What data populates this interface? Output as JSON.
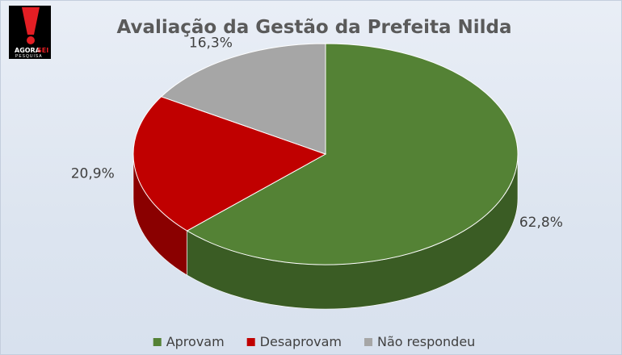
{
  "chart_data": {
    "type": "pie",
    "title": "Avaliação da Gestão da Prefeita Nilda",
    "slices": [
      {
        "label": "Aprovam",
        "value": 62.8,
        "value_label": "62,8%",
        "color": "#548235",
        "side_color": "#3a5c24"
      },
      {
        "label": "Desaprovam",
        "value": 20.9,
        "value_label": "20,9%",
        "color": "#c00000",
        "side_color": "#8a0000"
      },
      {
        "label": "Não respondeu",
        "value": 16.3,
        "value_label": "16,3%",
        "color": "#a6a6a6",
        "side_color": "#7f7f7f"
      }
    ],
    "legend_position": "bottom",
    "style": "3d"
  },
  "logo": {
    "brand_main": "AGORA",
    "brand_accent": "SEI",
    "brand_sub": "PESQUISA",
    "colors": {
      "red": "#e31e24",
      "black": "#000000"
    }
  }
}
